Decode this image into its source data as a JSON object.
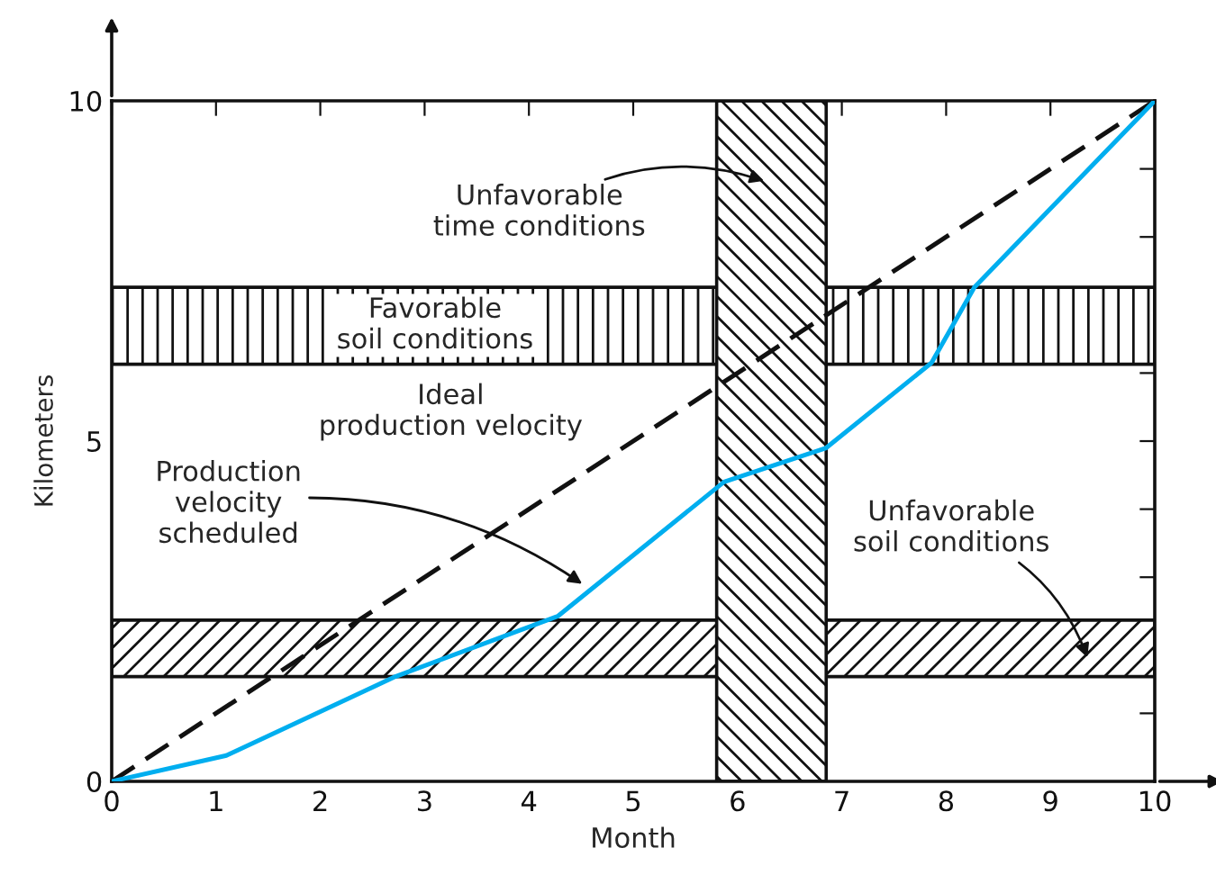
{
  "chart_data": {
    "type": "line",
    "xlabel": "Month",
    "ylabel": "Kilometers",
    "series": [
      {
        "color": "#111111",
        "line_style": "dashed",
        "x": [
          0,
          10
        ],
        "values": [
          0,
          10
        ]
      },
      {
        "color": "#00aeef",
        "line_style": "solid",
        "x": [
          0,
          1.1,
          2.72,
          4.28,
          5.87,
          6.85,
          7.86,
          8.27,
          10
        ],
        "values": [
          0,
          0.38,
          1.54,
          2.43,
          4.4,
          4.9,
          6.15,
          7.26,
          10
        ]
      }
    ],
    "bands": [
      {
        "axis": "y",
        "from": 6.13,
        "to": 7.26,
        "label": "Favorable\nsoil conditions"
      },
      {
        "axis": "y",
        "from": 1.54,
        "to": 2.37,
        "label": "Unfavorable\nsoil conditions"
      },
      {
        "axis": "x",
        "from": 5.8,
        "to": 6.85,
        "label": "Unfavorable\ntime conditions"
      }
    ],
    "annotations": [
      "Ideal\nproduction velocity",
      {
        "text": "Production\nvelocity\nscheduled",
        "x": 4.55,
        "y": 2.86
      }
    ],
    "xlim": [
      0,
      10
    ],
    "ylim": [
      0,
      10
    ],
    "xticks": [
      0,
      1,
      2,
      3,
      4,
      5,
      6,
      7,
      8,
      9,
      10
    ],
    "yticks": [
      0,
      {
        "value": 1,
        "label": null
      },
      {
        "value": 2,
        "label": null
      },
      {
        "value": 3,
        "label": null
      },
      {
        "value": 4,
        "label": null
      },
      5,
      {
        "value": 6,
        "label": null
      },
      {
        "value": 7,
        "label": null
      },
      {
        "value": 8,
        "label": null
      },
      {
        "value": 9,
        "label": null
      },
      10
    ],
    "grid": false,
    "legend": false
  }
}
